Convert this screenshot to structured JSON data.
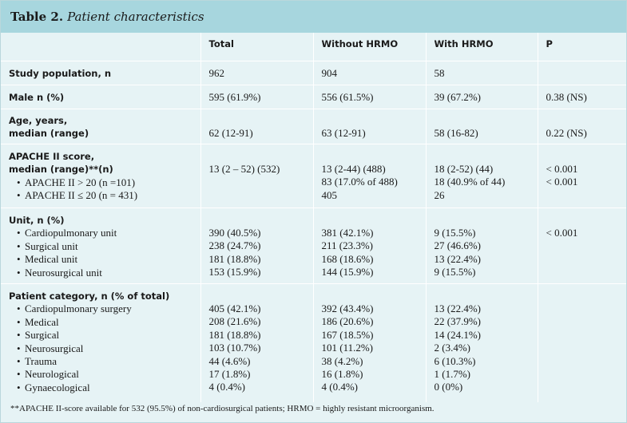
{
  "table": {
    "number": "Table 2.",
    "title": "Patient characteristics",
    "headers": [
      "",
      "Total",
      "Without HRMO",
      "With HRMO",
      "P"
    ],
    "rows": [
      {
        "label": "Study population, n",
        "total": "962",
        "without": "904",
        "with": "58",
        "p": ""
      },
      {
        "label": "Male n (%)",
        "total": "595 (61.9%)",
        "without": "556 (61.5%)",
        "with": "39 (67.2%)",
        "p": "0.38 (NS)"
      },
      {
        "label_lines": [
          "Age, years,",
          "median (range)"
        ],
        "total": "62 (12-91)",
        "without": "63 (12-91)",
        "with": "58 (16-82)",
        "p": "0.22 (NS)"
      },
      {
        "label_lines": [
          "APACHE II score,",
          "median (range)**(n)"
        ],
        "subitems": [
          "APACHE II > 20 (n =101)",
          "APACHE II ≤ 20 (n = 431)"
        ],
        "total": [
          "13 (2 – 52) (532)"
        ],
        "without": [
          "13 (2-44) (488)",
          "83 (17.0% of 488)",
          "405"
        ],
        "with": [
          "18 (2-52) (44)",
          "18 (40.9% of 44)",
          "26"
        ],
        "p": [
          "< 0.001",
          "< 0.001"
        ]
      },
      {
        "label": "Unit, n (%)",
        "subitems": [
          "Cardiopulmonary unit",
          "Surgical unit",
          "Medical unit",
          "Neurosurgical unit"
        ],
        "total": [
          "390 (40.5%)",
          "238 (24.7%)",
          "181 (18.8%)",
          "153 (15.9%)"
        ],
        "without": [
          "381 (42.1%)",
          "211 (23.3%)",
          "168 (18.6%)",
          "144 (15.9%)"
        ],
        "with": [
          "9 (15.5%)",
          "27 (46.6%)",
          "13 (22.4%)",
          "9 (15.5%)"
        ],
        "p": [
          "< 0.001"
        ]
      },
      {
        "label": "Patient category, n (% of total)",
        "subitems": [
          "Cardiopulmonary surgery",
          "Medical",
          "Surgical",
          "Neurosurgical",
          "Trauma",
          "Neurological",
          "Gynaecological"
        ],
        "total": [
          "405 (42.1%)",
          "208 (21.6%)",
          "181 (18.8%)",
          "103 (10.7%)",
          "44 (4.6%)",
          "17 (1.8%)",
          "4 (0.4%)"
        ],
        "without": [
          "392 (43.4%)",
          "186 (20.6%)",
          "167 (18.5%)",
          "101 (11.2%)",
          "38 (4.2%)",
          "16 (1.8%)",
          "4 (0.4%)"
        ],
        "with": [
          "13 (22.4%)",
          "22 (37.9%)",
          "14 (24.1%)",
          "2 (3.4%)",
          "6 (10.3%)",
          "1 (1.7%)",
          "0 (0%)"
        ],
        "p": []
      }
    ],
    "footnote": "**APACHE II-score available for 532 (95.5%) of non-cardiosurgical patients; HRMO = highly resistant microorganism."
  }
}
